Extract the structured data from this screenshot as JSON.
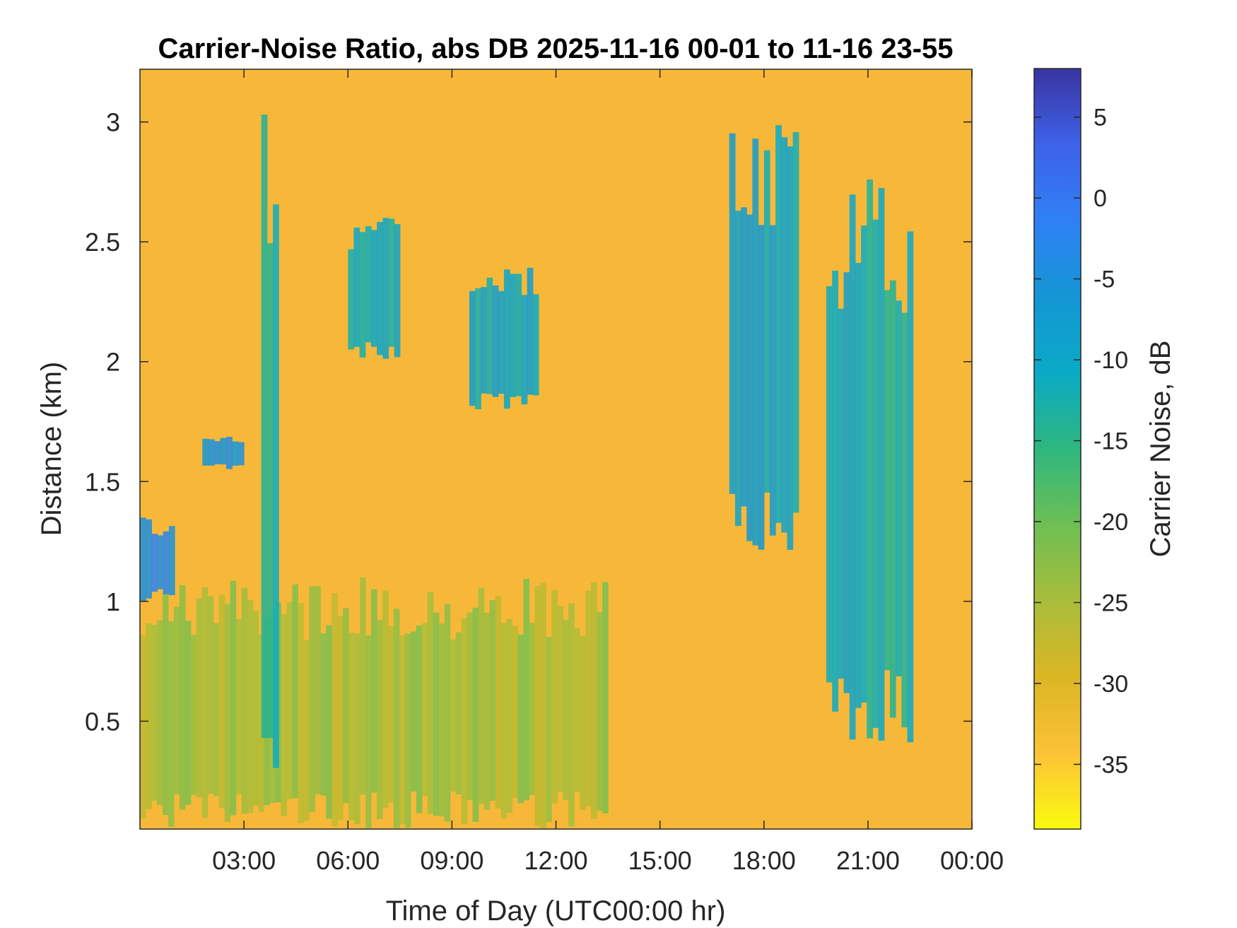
{
  "chart_data": {
    "type": "heatmap",
    "title": "Carrier-Noise Ratio, abs DB 2025-11-16 00-01 to 11-16 23-55",
    "xlabel": "Time of Day (UTC00:00 hr)",
    "ylabel": "Distance (km)",
    "colorbar_label": "Carrier Noise, dB",
    "x_range_hours": [
      0.0,
      24.0
    ],
    "y_range_km": [
      0.05,
      3.22
    ],
    "x_ticks": [
      {
        "value": 3,
        "label": "03:00"
      },
      {
        "value": 6,
        "label": "06:00"
      },
      {
        "value": 9,
        "label": "09:00"
      },
      {
        "value": 12,
        "label": "12:00"
      },
      {
        "value": 15,
        "label": "15:00"
      },
      {
        "value": 18,
        "label": "18:00"
      },
      {
        "value": 21,
        "label": "21:00"
      },
      {
        "value": 24,
        "label": "00:00"
      }
    ],
    "y_ticks": [
      {
        "value": 0.5,
        "label": "0.5"
      },
      {
        "value": 1.0,
        "label": "1"
      },
      {
        "value": 1.5,
        "label": "1.5"
      },
      {
        "value": 2.0,
        "label": "2"
      },
      {
        "value": 2.5,
        "label": "2.5"
      },
      {
        "value": 3.0,
        "label": "3"
      }
    ],
    "colorbar_range_db": [
      -39,
      8
    ],
    "colorbar_ticks": [
      {
        "value": 5,
        "label": "5"
      },
      {
        "value": 0,
        "label": "0"
      },
      {
        "value": -5,
        "label": "-5"
      },
      {
        "value": -10,
        "label": "-10"
      },
      {
        "value": -15,
        "label": "-15"
      },
      {
        "value": -20,
        "label": "-20"
      },
      {
        "value": -25,
        "label": "-25"
      },
      {
        "value": -30,
        "label": "-30"
      },
      {
        "value": -35,
        "label": "-35"
      }
    ],
    "colormap": [
      "#f9fb0e",
      "#fcc237",
      "#dcb624",
      "#a9bd3a",
      "#6ebf54",
      "#2eb77e",
      "#0aaac6",
      "#1496d4",
      "#2f80f5",
      "#3e62e8",
      "#3a34a0"
    ],
    "background_db": -31,
    "features": [
      {
        "name": "low-layer-aerosol",
        "t": [
          0.0,
          13.5
        ],
        "d": [
          0.05,
          1.1
        ],
        "db": -24
      },
      {
        "name": "dawn-boundary-top",
        "t": [
          0.0,
          1.0
        ],
        "d": [
          1.0,
          1.35
        ],
        "db": -4
      },
      {
        "name": "morning-layer-top",
        "t": [
          1.8,
          3.0
        ],
        "d": [
          1.55,
          1.7
        ],
        "db": -6
      },
      {
        "name": "column-0330",
        "t": [
          3.5,
          4.0
        ],
        "d": [
          0.05,
          3.22
        ],
        "db": -12
      },
      {
        "name": "cloud-morning",
        "t": [
          6.0,
          7.5
        ],
        "d": [
          2.0,
          2.6
        ],
        "db": -12
      },
      {
        "name": "cloud-midday",
        "t": [
          9.5,
          11.5
        ],
        "d": [
          1.8,
          2.4
        ],
        "db": -10
      },
      {
        "name": "cloud-evening",
        "t": [
          17.0,
          19.0
        ],
        "d": [
          1.2,
          3.0
        ],
        "db": -9
      },
      {
        "name": "precip-night",
        "t": [
          19.8,
          22.3
        ],
        "d": [
          0.4,
          2.8
        ],
        "db": -11
      }
    ]
  }
}
